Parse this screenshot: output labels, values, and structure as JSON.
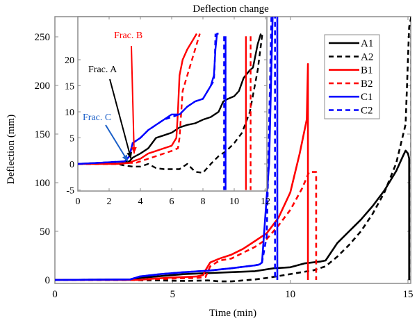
{
  "chart_data": {
    "type": "line",
    "title": "Deflection change",
    "xlabel": "Time (min)",
    "ylabel": "Deflection (mm)",
    "xlim": [
      0,
      15.2
    ],
    "ylim": [
      -2,
      272
    ],
    "xticks": [
      0,
      5,
      10,
      15
    ],
    "yticks": [
      0,
      50,
      100,
      150,
      200,
      250
    ],
    "grid": false,
    "legend": {
      "placement": "top-right",
      "entries": [
        "A1",
        "A2",
        "B1",
        "B2",
        "C1",
        "C2"
      ]
    },
    "series": [
      {
        "name": "A1",
        "color": "#000000",
        "style": "solid",
        "x": [
          0,
          3.3,
          3.6,
          4.5,
          5.5,
          6.5,
          7.5,
          8.5,
          9.3,
          10.0,
          10.6,
          11.3,
          11.5,
          12.0,
          12.5,
          13.0,
          13.5,
          14.0,
          14.5,
          14.8,
          14.9,
          15.0,
          15.05,
          15.05
        ],
        "y": [
          0,
          0.5,
          2,
          4,
          6,
          7,
          8,
          9,
          12,
          13,
          17,
          19,
          20,
          38,
          50,
          62,
          76,
          92,
          112,
          128,
          133,
          130,
          125,
          0
        ]
      },
      {
        "name": "A2",
        "color": "#000000",
        "style": "dashed",
        "x": [
          0,
          3.3,
          3.8,
          4.5,
          5.5,
          6.5,
          7.0,
          7.5,
          8.0,
          8.5,
          9.0,
          9.5,
          10.0,
          10.5,
          11.0,
          11.5,
          12.0,
          12.5,
          13.0,
          13.5,
          14.0,
          14.5,
          14.9,
          15.05,
          15.15,
          15.15
        ],
        "y": [
          0,
          0,
          -0.5,
          -0.5,
          -1,
          -0.5,
          -1.5,
          -1.5,
          -0.5,
          0.5,
          2,
          4,
          6,
          8,
          10,
          14,
          24,
          36,
          50,
          68,
          90,
          120,
          160,
          260,
          272,
          0
        ]
      },
      {
        "name": "B1",
        "color": "#ff0000",
        "style": "solid",
        "x": [
          0,
          3.6,
          4.0,
          5.0,
          6.0,
          6.3,
          6.4,
          6.6,
          7.0,
          7.5,
          8.0,
          8.5,
          9.0,
          9.5,
          10.0,
          10.4,
          10.7,
          10.75,
          10.75
        ],
        "y": [
          0,
          0,
          1,
          2.5,
          3.5,
          5,
          10,
          18,
          22,
          26,
          32,
          40,
          48,
          64,
          90,
          130,
          165,
          222,
          0
        ]
      },
      {
        "name": "B2",
        "color": "#ff0000",
        "style": "dashed",
        "x": [
          0,
          3.6,
          4.0,
          5.0,
          6.0,
          6.4,
          6.6,
          7.0,
          7.5,
          8.0,
          8.5,
          9.0,
          9.5,
          10.0,
          10.5,
          10.8,
          11.1,
          11.1
        ],
        "y": [
          0,
          0,
          0.5,
          1.5,
          2,
          3,
          14,
          20,
          22,
          28,
          34,
          42,
          56,
          72,
          94,
          111,
          111,
          0
        ]
      },
      {
        "name": "C1",
        "color": "#0000ff",
        "style": "solid",
        "x": [
          0,
          3.2,
          3.6,
          4.5,
          5.5,
          6.5,
          7.5,
          8.5,
          8.7,
          8.8,
          9.1,
          9.25,
          9.4,
          9.45,
          9.45
        ],
        "y": [
          0,
          0.5,
          3.5,
          6,
          8,
          9.5,
          12,
          15,
          16,
          18,
          120,
          272,
          272,
          272,
          0
        ]
      },
      {
        "name": "C2",
        "color": "#0000ff",
        "style": "dashed",
        "x": [
          0,
          3.2,
          3.6,
          4.5,
          5.5,
          6.5,
          7.5,
          8.5,
          8.75,
          8.8,
          9.0,
          9.2,
          9.35,
          9.35
        ],
        "y": [
          0,
          0.5,
          3.5,
          6,
          8,
          9.5,
          12,
          15,
          16,
          18,
          45,
          272,
          272,
          0
        ]
      }
    ],
    "inset": {
      "xlim": [
        0,
        12
      ],
      "ylim": [
        -5,
        24.5
      ],
      "xticks": [
        0,
        2,
        4,
        6,
        8,
        10,
        12
      ],
      "yticks": [
        -5,
        0,
        5,
        10,
        15,
        20
      ],
      "annotations": [
        {
          "text": "Frac. A",
          "color": "#000000",
          "arrow_to": [
            3.4,
            1
          ]
        },
        {
          "text": "Frac. B",
          "color": "#ff0000",
          "arrow_to": [
            3.6,
            2
          ]
        },
        {
          "text": "Frac. C",
          "color": "#1a5fc8",
          "arrow_to": [
            3.2,
            0.5
          ]
        }
      ],
      "series": [
        {
          "name": "A1",
          "color": "#000000",
          "style": "solid",
          "x": [
            0,
            3.3,
            3.5,
            4.0,
            4.5,
            5.0,
            5.5,
            6.0,
            6.5,
            7.0,
            7.5,
            8.0,
            8.5,
            9.0,
            9.3,
            9.6,
            10.0,
            10.3,
            10.6,
            11.0,
            11.2,
            11.5,
            11.7
          ],
          "y": [
            0,
            0.5,
            1.2,
            2,
            3,
            5,
            5.5,
            6,
            7,
            7.5,
            7.8,
            8.5,
            9,
            10,
            12,
            12.5,
            13,
            14,
            16.5,
            18,
            18.5,
            23,
            25
          ]
        },
        {
          "name": "A2",
          "color": "#000000",
          "style": "dashed",
          "x": [
            0,
            2.5,
            3.0,
            3.5,
            4.0,
            4.5,
            5.0,
            5.5,
            6.0,
            6.5,
            7.0,
            7.5,
            8.0,
            8.5,
            9.0,
            9.5,
            10.0,
            10.5,
            11.0,
            11.5,
            11.8
          ],
          "y": [
            0,
            0,
            -0.3,
            -0.5,
            -0.5,
            0,
            -0.8,
            -1,
            -1,
            -1,
            0,
            -1.5,
            -1.7,
            0,
            1.5,
            2.5,
            4,
            6,
            10,
            18,
            25
          ]
        },
        {
          "name": "B1",
          "color": "#ff0000",
          "style": "solid",
          "x": [
            0,
            2.5,
            3.3,
            3.5,
            4.0,
            4.5,
            5.0,
            5.5,
            6.0,
            6.3,
            6.4,
            6.5,
            6.7,
            7.0,
            7.3,
            7.6
          ],
          "y": [
            0,
            0,
            0.2,
            0.5,
            1,
            2,
            2.5,
            3,
            3.5,
            5,
            10,
            17,
            20,
            22,
            23.5,
            25
          ]
        },
        {
          "name": "B2",
          "color": "#ff0000",
          "style": "dashed",
          "x": [
            0,
            2.5,
            3.3,
            3.7,
            4.0,
            4.5,
            5.0,
            5.5,
            6.0,
            6.4,
            6.5,
            6.7,
            7.0,
            7.4,
            7.8
          ],
          "y": [
            0,
            0,
            0.2,
            0.2,
            0.5,
            1,
            1.5,
            2,
            2.5,
            3,
            5,
            14,
            17,
            21,
            25
          ]
        },
        {
          "name": "B1-drop",
          "color": "#ff0000",
          "style": "solid",
          "x": [
            10.75,
            10.75
          ],
          "y": [
            24.5,
            -5
          ]
        },
        {
          "name": "B2-drop",
          "color": "#ff0000",
          "style": "dashed",
          "x": [
            11.05,
            11.05
          ],
          "y": [
            24.5,
            -5
          ]
        },
        {
          "name": "C1",
          "color": "#0000ff",
          "style": "solid",
          "x": [
            0,
            3.0,
            3.3,
            3.5,
            4.0,
            4.5,
            5.0,
            5.5,
            6.0,
            6.5,
            7.0,
            7.5,
            8.0,
            8.5,
            8.7,
            8.8,
            8.9,
            9.0
          ],
          "y": [
            0,
            0.5,
            1.5,
            4,
            5,
            6.5,
            7.5,
            8.5,
            9.5,
            9.5,
            11,
            12,
            12.5,
            15,
            17,
            22,
            25,
            25
          ]
        },
        {
          "name": "C2",
          "color": "#0000ff",
          "style": "dashed",
          "x": [
            0,
            3.0,
            3.3,
            3.5,
            4.0,
            4.5,
            5.0,
            5.5,
            6.0,
            6.5,
            7.0,
            7.5,
            8.0,
            8.5,
            8.7,
            8.75,
            8.8
          ],
          "y": [
            0,
            0.5,
            1.5,
            4,
            5,
            6.5,
            7.5,
            8.5,
            9,
            9.5,
            11,
            12,
            12.5,
            15,
            16,
            19,
            25
          ]
        },
        {
          "name": "C1-drop",
          "color": "#0000ff",
          "style": "solid",
          "x": [
            9.45,
            9.45
          ],
          "y": [
            24.5,
            -5
          ]
        },
        {
          "name": "C2-drop",
          "color": "#0000ff",
          "style": "dashed",
          "x": [
            9.35,
            9.35
          ],
          "y": [
            24.5,
            -5
          ]
        }
      ]
    }
  }
}
